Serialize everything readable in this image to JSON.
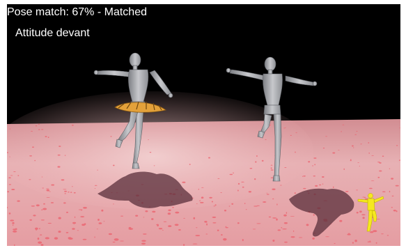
{
  "hud": {
    "pose_match": "Pose match: 67% - Matched",
    "pose_name": "Attitude devant"
  },
  "colors": {
    "sky": "#000000",
    "floor": "#e9b2b4",
    "floor_spots": "#ec5f6b",
    "mannequin": "#a9aaae",
    "tutu": "#e0a23c",
    "target_figure": "#f5e81e"
  },
  "icons": [
    "left-dancer-mannequin",
    "right-dancer-mannequin",
    "target-pose-figure"
  ]
}
